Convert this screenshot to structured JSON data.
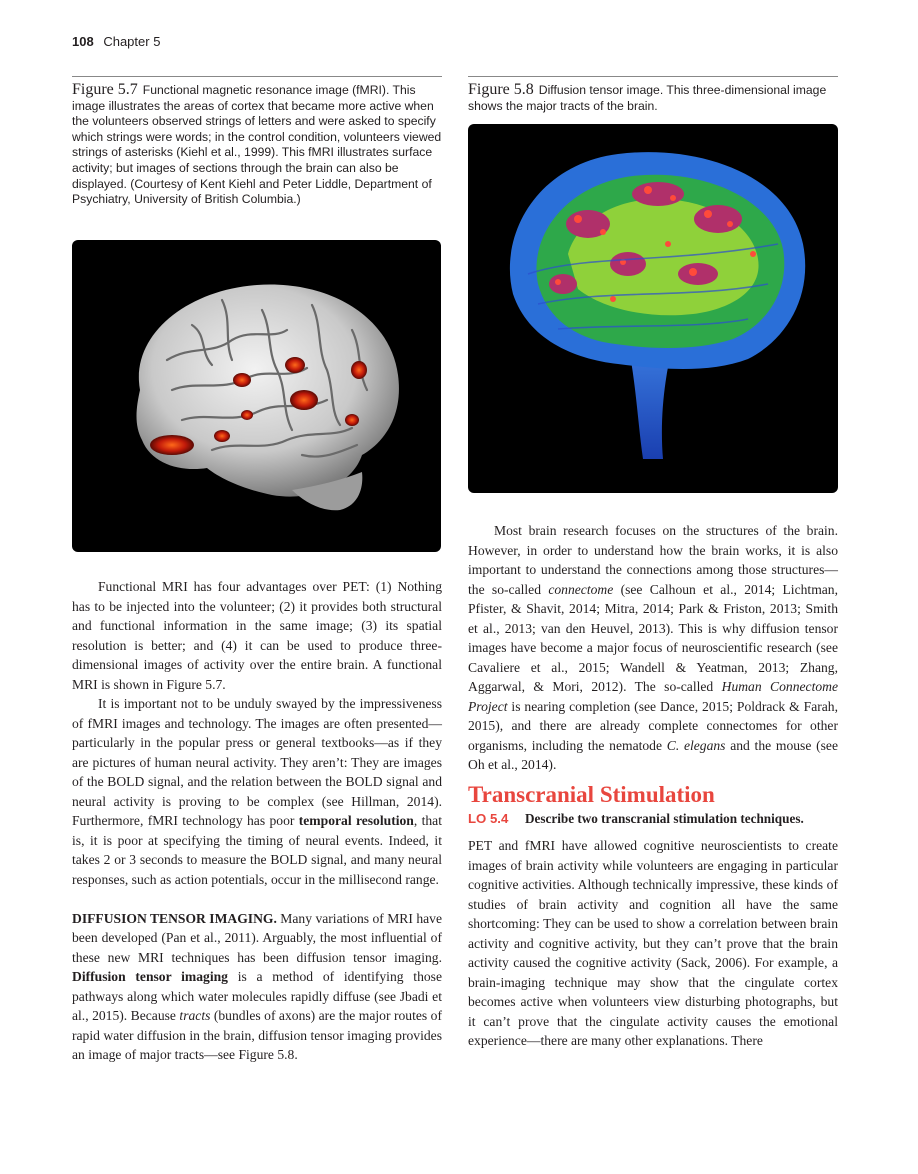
{
  "header": {
    "page_number": "108",
    "chapter": "Chapter 5"
  },
  "figure_5_7": {
    "label": "Figure 5.7",
    "caption": "Functional magnetic resonance image (fMRI). This image illustrates the areas of cortex that became more active when the volunteers observed strings of letters and were asked to specify which strings were words; in the control condition, volunteers viewed strings of asterisks (Kiehl et al., 1999). This fMRI illustrates surface activity; but images of sections through the brain can also be displayed. (Courtesy of Kent Kiehl and Peter Liddle, Department of Psychiatry, University of British Columbia.)"
  },
  "figure_5_8": {
    "label": "Figure 5.8",
    "caption": "Diffusion tensor image. This three-dimensional image shows the major tracts of the brain."
  },
  "left_text": {
    "p1": "Functional MRI has four advantages over PET: (1) Nothing has to be injected into the volunteer; (2) it pro­vides both structural and functional information in the same image; (3) its spatial resolution is better; and (4) it can be used to produce three-dimensional images of activity over the entire brain. A functional MRI is shown in Figure 5.7.",
    "p2_before": "It is important not to be unduly swayed by the im­pressiveness of fMRI images and technology. The images are often presented—particularly in the popular press or general textbooks—as if they are pictures of human neural activity. They aren’t: They are images of the BOLD signal, and the relation between the BOLD signal and neural activity is proving to be complex (see Hillman, 2014). Furthermore, fMRI technology has poor ",
    "p2_bold": "temporal resolu­tion",
    "p2_after": ", that is, it is poor at specifying the timing of neural events. Indeed, it takes 2 or 3 seconds to measure the BOLD signal, and many neural responses, such as action potentials, occur in the millisecond range.",
    "p3_head": "DIFFUSION TENSOR IMAGING.",
    "p3_a": " Many variations of MRI have been developed (Pan et al., 2011). Arguably, the most influential of these new MRI techniques has been diffusion tensor imaging. ",
    "p3_bold": "Diffusion tensor imaging",
    "p3_b": " is a method of identifying those pathways along which water molecules rapidly diffuse (see Jbadi et al., 2015). Because ",
    "p3_italic": "tracts",
    "p3_c": " (bundles of axons) are the major routes of rapid water diffusion in the brain, diffusion tensor imaging pro­vides an image of major tracts—see Figure 5.8."
  },
  "right_text": {
    "p1_a": "Most brain research focuses on the structures of the brain. However, in order to understand how the brain works, it is also important to understand the connec­tions among those structures—the so-called ",
    "p1_i1": "connectome",
    "p1_b": " (see Calhoun et al., 2014; Lichtman, Pfister, & Shavit, 2014; Mitra, 2014; Park & Friston, 2013; Smith et al., 2013; van den Heuvel, 2013). This is why diffusion tensor images have become a major focus of neuroscientific research (see Cavaliere et al., 2015; Wandell & Yeatman, 2013; Zhang, Aggarwal, & Mori, 2012). The so-called ",
    "p1_i2": "Human Connectome Project",
    "p1_c": " is nearing completion (see Dance, 2015; Poldrack & Farah, 2015), and there are already complete connectomes for other organisms, including the nematode ",
    "p1_i3": "C. elegans",
    "p1_d": " and the mouse (see Oh et al., 2014).",
    "section_title": "Transcranial Stimulation",
    "lo_tag": "LO 5.4",
    "lo_text": "Describe two transcranial stimulation techniques.",
    "p2": "PET and fMRI have allowed cognitive neuroscientists to create images of brain activity while volunteers are engag­ing in particular cognitive activities. Although technically impressive, these kinds of studies of brain activity and cog­nition all have the same shortcoming: They can be used to show a correlation between brain activity and cognitive ac­tivity, but they can’t prove that the brain activity caused the cognitive activity (Sack, 2006). For example, a brain-imaging technique may show that the cingulate cortex becomes ac­tive when volunteers view disturbing photographs, but it can’t prove that the cingulate activity causes the emotional experience—there are many other explanations. There"
  }
}
